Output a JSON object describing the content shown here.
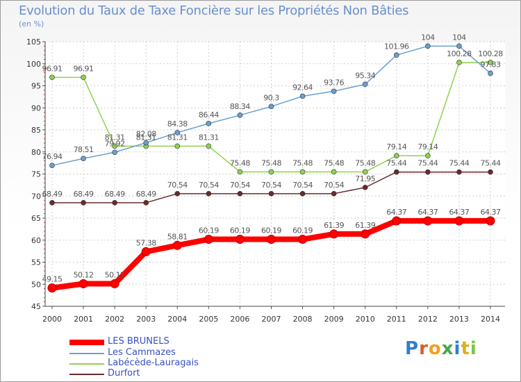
{
  "header": {
    "title": "Evolution du Taux de Taxe Foncière sur les Propriétés Non Bâties",
    "unit": "(en %)"
  },
  "branding": {
    "logo_text": "Proxiti"
  },
  "legend": [
    {
      "label": "LES BRUNELS",
      "color": "#ff0000"
    },
    {
      "label": "Les Cammazes",
      "color": "#6a9fcf"
    },
    {
      "label": "Labécède-Lauragais",
      "color": "#8fd14f"
    },
    {
      "label": "Durfort",
      "color": "#6b2a2a"
    }
  ],
  "chart_data": {
    "type": "line",
    "title": "Evolution du Taux de Taxe Foncière sur les Propriétés Non Bâties",
    "ylabel": "(en %)",
    "xlabel": "",
    "x": [
      2000,
      2001,
      2002,
      2003,
      2004,
      2005,
      2006,
      2007,
      2008,
      2009,
      2010,
      2011,
      2012,
      2013,
      2014
    ],
    "ylim": [
      45,
      105
    ],
    "yticks": [
      45,
      50,
      55,
      60,
      65,
      70,
      75,
      80,
      85,
      90,
      95,
      100,
      105
    ],
    "grid": true,
    "legend_position": "bottom-left",
    "series": [
      {
        "name": "LES BRUNELS",
        "color": "#ff0000",
        "values": [
          49.15,
          50.12,
          50.12,
          57.38,
          58.81,
          60.19,
          60.19,
          60.19,
          60.19,
          61.39,
          61.39,
          64.37,
          64.37,
          64.37,
          64.37
        ],
        "labels": [
          "49.15",
          "50.12",
          "50.12",
          "57.38",
          "58.81",
          "60.19",
          "60.19",
          "60.19",
          "60.19",
          "61.39",
          "61.39",
          "64.37",
          "64.37",
          "64.37",
          "64.37"
        ]
      },
      {
        "name": "Les Cammazes",
        "color": "#6a9fcf",
        "values": [
          76.94,
          78.51,
          79.92,
          82.08,
          84.38,
          86.44,
          88.34,
          90.3,
          92.64,
          93.76,
          95.34,
          101.96,
          104,
          104,
          97.83
        ],
        "labels": [
          "76.94",
          "78.51",
          "79.92",
          "82.08",
          "84.38",
          "86.44",
          "88.34",
          "90.3",
          "92.64",
          "93.76",
          "95.34",
          "101.96",
          "104",
          "104",
          "97.83"
        ]
      },
      {
        "name": "Labécède-Lauragais",
        "color": "#8fd14f",
        "values": [
          96.91,
          96.91,
          81.31,
          81.31,
          81.31,
          81.31,
          75.48,
          75.48,
          75.48,
          75.48,
          75.48,
          79.14,
          79.14,
          100.28,
          100.28
        ],
        "labels": [
          "96.91",
          "96.91",
          "81.31",
          "81.31",
          "81.31",
          "81.31",
          "75.48",
          "75.48",
          "75.48",
          "75.48",
          "75.48",
          "79.14",
          "79.14",
          "100.28",
          "100.28"
        ]
      },
      {
        "name": "Durfort",
        "color": "#6b2a2a",
        "values": [
          68.49,
          68.49,
          68.49,
          68.49,
          70.54,
          70.54,
          70.54,
          70.54,
          70.54,
          70.54,
          71.95,
          75.44,
          75.44,
          75.44,
          75.44
        ],
        "labels": [
          "68.49",
          "68.49",
          "68.49",
          "68.49",
          "70.54",
          "70.54",
          "70.54",
          "70.54",
          "70.54",
          "70.54",
          "71.95",
          "75.44",
          "75.44",
          "75.44",
          "75.44"
        ]
      }
    ]
  }
}
